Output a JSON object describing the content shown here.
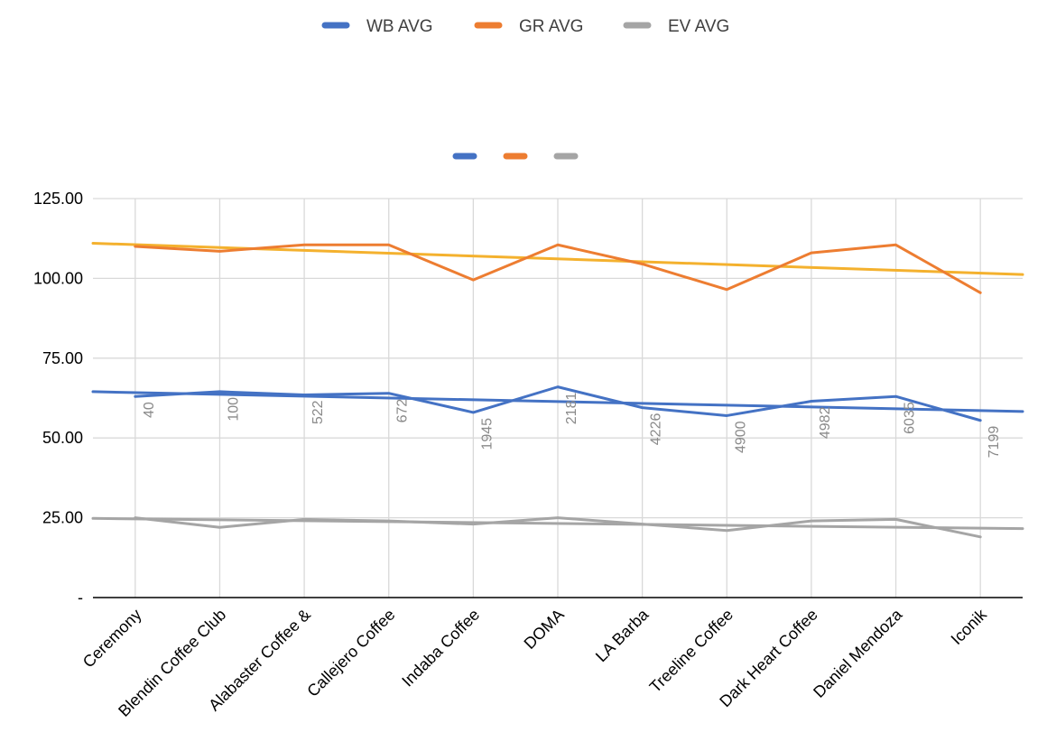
{
  "chart_data": {
    "type": "line",
    "title": "",
    "xlabel": "",
    "ylabel": "",
    "ylim": [
      0,
      125
    ],
    "y_ticks": [
      "-",
      "25.00",
      "50.00",
      "75.00",
      "100.00",
      "125.00"
    ],
    "grid": "horizontal and vertical",
    "legend_placement": "top-center",
    "categories": [
      "Ceremony",
      "Blendin Coffee Club",
      "Alabaster Coffee &",
      "Callejero Coffee",
      "Indaba Coffee",
      "DOMA",
      "LA Barba",
      "Treeline Coffee",
      "Dark Heart Coffee",
      "Daniel Mendoza",
      "Iconik"
    ],
    "series": [
      {
        "name": "WB AVG",
        "color": "#4472C4",
        "values": [
          63,
          64.5,
          63.5,
          64,
          58,
          66,
          59.5,
          57,
          61.5,
          63,
          55.5
        ]
      },
      {
        "name": "GR AVG",
        "color": "#ED7D31",
        "values": [
          110,
          108.5,
          110.5,
          110.5,
          99.5,
          110.5,
          104.5,
          96.5,
          108,
          110.5,
          95.5
        ]
      },
      {
        "name": "EV AVG",
        "color": "#A5A5A5",
        "values": [
          25,
          22,
          24.5,
          24,
          23,
          25,
          23,
          21,
          24,
          24.5,
          19
        ]
      }
    ],
    "trendlines": [
      {
        "series": "WB AVG",
        "color": "#4472C4",
        "start": 64.5,
        "end": 58.3
      },
      {
        "series": "GR AVG",
        "color": "#F4B12E",
        "start": 111,
        "end": 101.2
      },
      {
        "series": "EV AVG",
        "color": "#A5A5A5",
        "start": 24.8,
        "end": 21.6
      }
    ],
    "data_labels": [
      "40",
      "100",
      "522",
      "672",
      "1945",
      "2181",
      "4226",
      "4900",
      "4982",
      "6035",
      "7199"
    ],
    "secondary_legend": [
      {
        "color": "#4472C4"
      },
      {
        "color": "#ED7D31"
      },
      {
        "color": "#A5A5A5"
      }
    ]
  }
}
